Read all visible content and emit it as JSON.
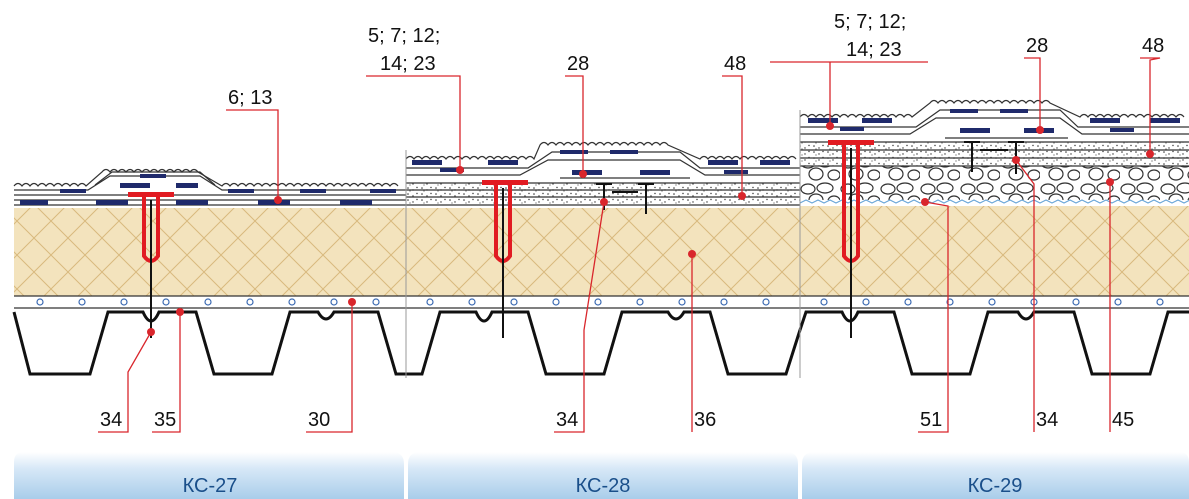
{
  "panels": [
    {
      "tab": "КС-27",
      "labels_top": [
        "6; 13"
      ],
      "labels_bottom": [
        "34",
        "35",
        "30"
      ]
    },
    {
      "tab": "КС-28",
      "labels_top": [
        "5; 7; 12;",
        "14; 23",
        "28",
        "48"
      ],
      "labels_bottom": [
        "34",
        "36"
      ]
    },
    {
      "tab": "КС-29",
      "labels_top": [
        "5; 7; 12;",
        "14; 23",
        "28",
        "48"
      ],
      "labels_bottom": [
        "51",
        "34",
        "45"
      ]
    }
  ],
  "colors": {
    "insulation": "#f3e3bd",
    "membrane_dark": "#1f2a6b",
    "fastener": "#e11b22",
    "callout": "#d9262c",
    "tab_fill": "#bcd8f0",
    "tab_text": "#1a4f8a"
  }
}
